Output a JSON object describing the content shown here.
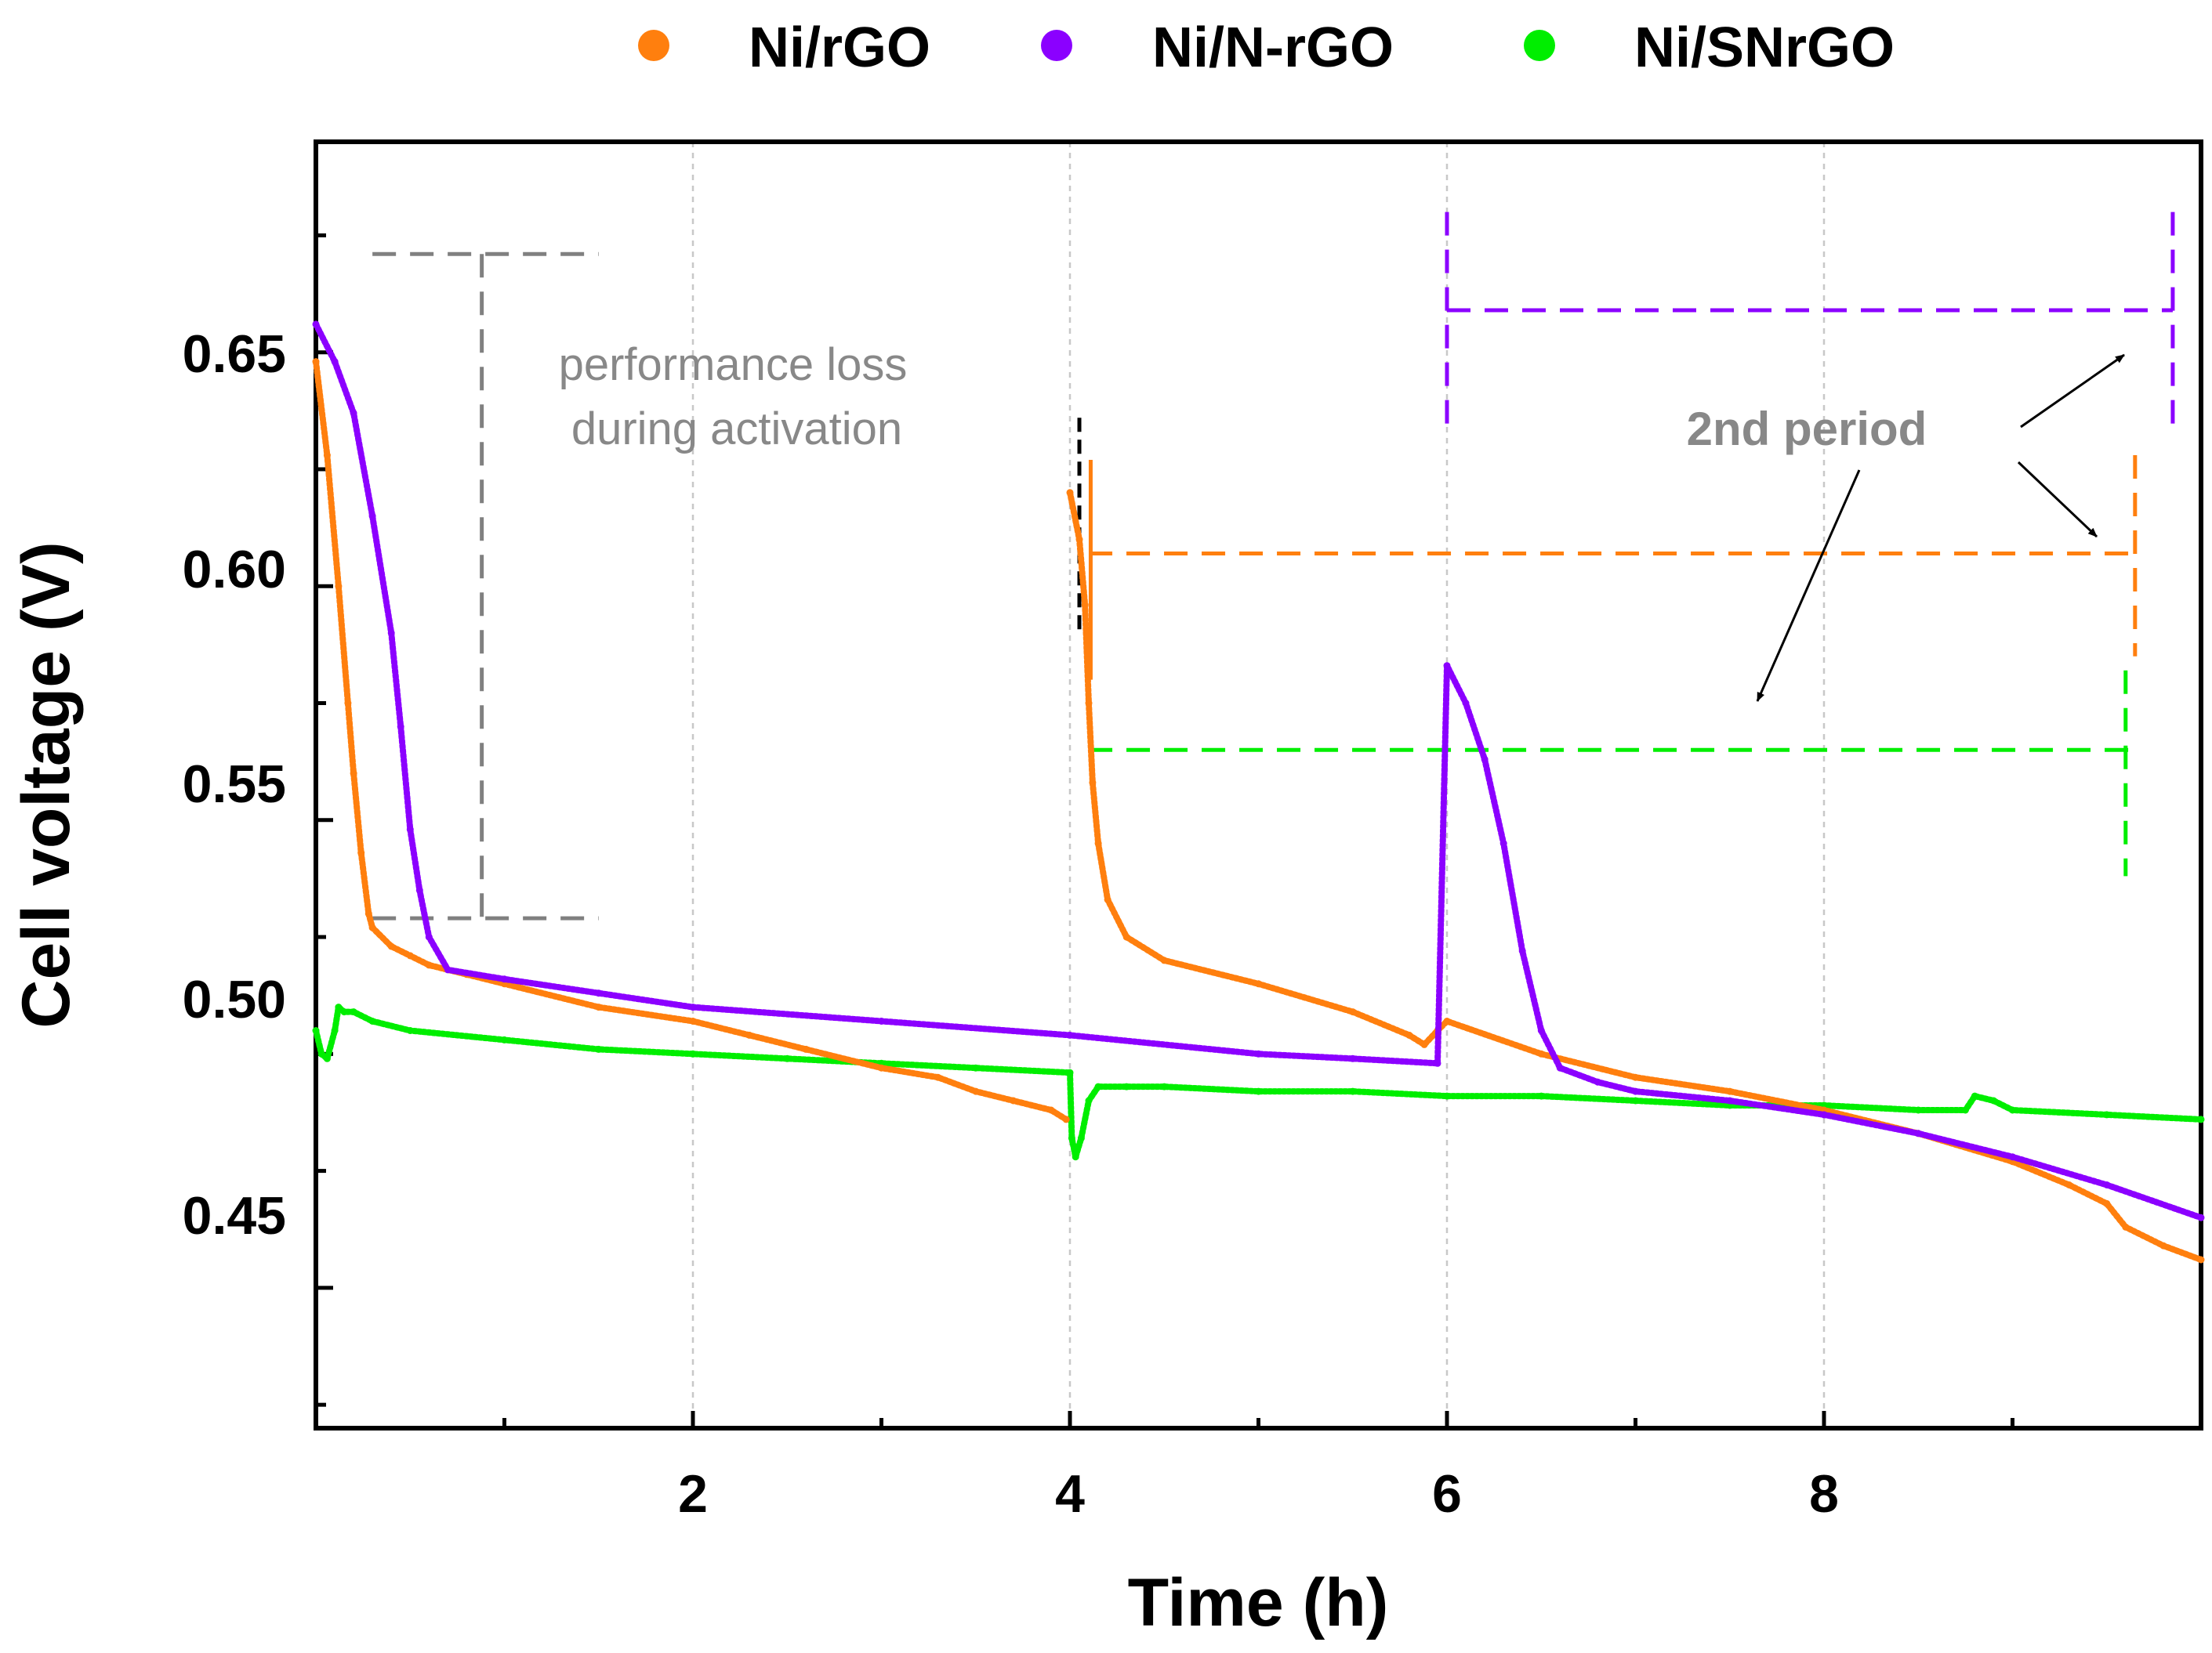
{
  "chart_data": {
    "type": "scatter",
    "title": "",
    "xlabel": "Time (h)",
    "ylabel": "Cell voltage (V)",
    "xlim": [
      0,
      10
    ],
    "ylim": [
      0.42,
      0.695
    ],
    "x_ticks": [
      2,
      4,
      6,
      8
    ],
    "x_tick_labels": [
      "2",
      "4",
      "6",
      "8"
    ],
    "y_ticks": [
      0.45,
      0.5,
      0.55,
      0.6,
      0.65
    ],
    "y_tick_labels": [
      "0.45",
      "0.50",
      "0.55",
      "0.60",
      "0.65"
    ],
    "grid": "vertical dashed at major x ticks",
    "legend": "top, horizontal",
    "series": [
      {
        "name": "Ni/rGO",
        "color": "#ff7f0e",
        "points": [
          [
            0.0,
            0.648
          ],
          [
            0.06,
            0.628
          ],
          [
            0.12,
            0.6
          ],
          [
            0.17,
            0.575
          ],
          [
            0.2,
            0.56
          ],
          [
            0.24,
            0.543
          ],
          [
            0.28,
            0.53
          ],
          [
            0.3,
            0.527
          ],
          [
            0.4,
            0.523
          ],
          [
            0.5,
            0.521
          ],
          [
            0.6,
            0.519
          ],
          [
            0.8,
            0.517
          ],
          [
            1.0,
            0.515
          ],
          [
            1.5,
            0.51
          ],
          [
            2.0,
            0.507
          ],
          [
            2.3,
            0.504
          ],
          [
            2.6,
            0.501
          ],
          [
            3.0,
            0.497
          ],
          [
            3.3,
            0.495
          ],
          [
            3.5,
            0.492
          ],
          [
            3.7,
            0.49
          ],
          [
            3.9,
            0.488
          ],
          [
            3.98,
            0.486
          ],
          [
            4.0,
            0.62
          ],
          [
            4.05,
            0.61
          ],
          [
            4.08,
            0.596
          ],
          [
            4.1,
            0.575
          ],
          [
            4.12,
            0.558
          ],
          [
            4.15,
            0.545
          ],
          [
            4.2,
            0.533
          ],
          [
            4.3,
            0.525
          ],
          [
            4.5,
            0.52
          ],
          [
            5.0,
            0.515
          ],
          [
            5.5,
            0.509
          ],
          [
            5.8,
            0.504
          ],
          [
            5.88,
            0.502
          ],
          [
            5.95,
            0.505
          ],
          [
            6.0,
            0.507
          ],
          [
            6.5,
            0.5
          ],
          [
            7.0,
            0.495
          ],
          [
            7.5,
            0.492
          ],
          [
            8.0,
            0.488
          ],
          [
            8.5,
            0.483
          ],
          [
            9.0,
            0.477
          ],
          [
            9.3,
            0.472
          ],
          [
            9.5,
            0.468
          ],
          [
            9.6,
            0.463
          ],
          [
            9.8,
            0.459
          ],
          [
            10.0,
            0.456
          ]
        ]
      },
      {
        "name": "Ni/N-rGO",
        "color": "#8b00ff",
        "points": [
          [
            0.0,
            0.656
          ],
          [
            0.1,
            0.648
          ],
          [
            0.2,
            0.637
          ],
          [
            0.3,
            0.615
          ],
          [
            0.4,
            0.59
          ],
          [
            0.45,
            0.57
          ],
          [
            0.5,
            0.548
          ],
          [
            0.55,
            0.535
          ],
          [
            0.6,
            0.525
          ],
          [
            0.7,
            0.518
          ],
          [
            1.0,
            0.516
          ],
          [
            1.5,
            0.513
          ],
          [
            2.0,
            0.51
          ],
          [
            3.0,
            0.507
          ],
          [
            4.0,
            0.504
          ],
          [
            5.0,
            0.5
          ],
          [
            5.5,
            0.499
          ],
          [
            5.95,
            0.498
          ],
          [
            6.0,
            0.583
          ],
          [
            6.1,
            0.575
          ],
          [
            6.2,
            0.563
          ],
          [
            6.3,
            0.545
          ],
          [
            6.4,
            0.522
          ],
          [
            6.5,
            0.505
          ],
          [
            6.6,
            0.497
          ],
          [
            6.8,
            0.494
          ],
          [
            7.0,
            0.492
          ],
          [
            7.5,
            0.49
          ],
          [
            8.0,
            0.487
          ],
          [
            8.5,
            0.483
          ],
          [
            9.0,
            0.478
          ],
          [
            9.5,
            0.472
          ],
          [
            10.0,
            0.465
          ]
        ]
      },
      {
        "name": "Ni/SNrGO",
        "color": "#00ee00",
        "points": [
          [
            0.0,
            0.505
          ],
          [
            0.03,
            0.5
          ],
          [
            0.06,
            0.499
          ],
          [
            0.1,
            0.505
          ],
          [
            0.12,
            0.51
          ],
          [
            0.15,
            0.509
          ],
          [
            0.2,
            0.509
          ],
          [
            0.3,
            0.507
          ],
          [
            0.5,
            0.505
          ],
          [
            1.0,
            0.503
          ],
          [
            1.5,
            0.501
          ],
          [
            2.0,
            0.5
          ],
          [
            2.5,
            0.499
          ],
          [
            3.0,
            0.498
          ],
          [
            3.5,
            0.497
          ],
          [
            4.0,
            0.496
          ],
          [
            4.01,
            0.482
          ],
          [
            4.03,
            0.478
          ],
          [
            4.06,
            0.482
          ],
          [
            4.1,
            0.49
          ],
          [
            4.15,
            0.493
          ],
          [
            4.3,
            0.493
          ],
          [
            4.5,
            0.493
          ],
          [
            5.0,
            0.492
          ],
          [
            5.5,
            0.492
          ],
          [
            6.0,
            0.491
          ],
          [
            6.5,
            0.491
          ],
          [
            7.0,
            0.49
          ],
          [
            7.5,
            0.489
          ],
          [
            8.0,
            0.489
          ],
          [
            8.5,
            0.488
          ],
          [
            8.75,
            0.488
          ],
          [
            8.8,
            0.491
          ],
          [
            8.9,
            0.49
          ],
          [
            9.0,
            0.488
          ],
          [
            9.5,
            0.487
          ],
          [
            10.0,
            0.486
          ]
        ]
      }
    ],
    "annotations": {
      "activation_text_line1": "performance loss",
      "activation_text_line2": "during activation",
      "second_period_text": "2nd period",
      "activation_bracket_color": "#808080",
      "activation_bracket": {
        "x_left": 0.3,
        "x_right": 1.5,
        "x_bracket": 0.88,
        "y_top": 0.671,
        "y_bottom": 0.529
      },
      "periods": [
        {
          "name": "Ni/N-rGO",
          "color": "#8b00ff",
          "y_level": 0.659,
          "x_start": 6.0,
          "x_end": 9.85
        },
        {
          "name": "Ni/rGO",
          "color": "#ff7f0e",
          "y_level": 0.607,
          "x_start": 4.1,
          "x_end": 9.65
        },
        {
          "name": "Ni/SNrGO",
          "color": "#00ee00",
          "y_level": 0.565,
          "x_start": 4.1,
          "x_end": 9.65
        }
      ]
    }
  }
}
